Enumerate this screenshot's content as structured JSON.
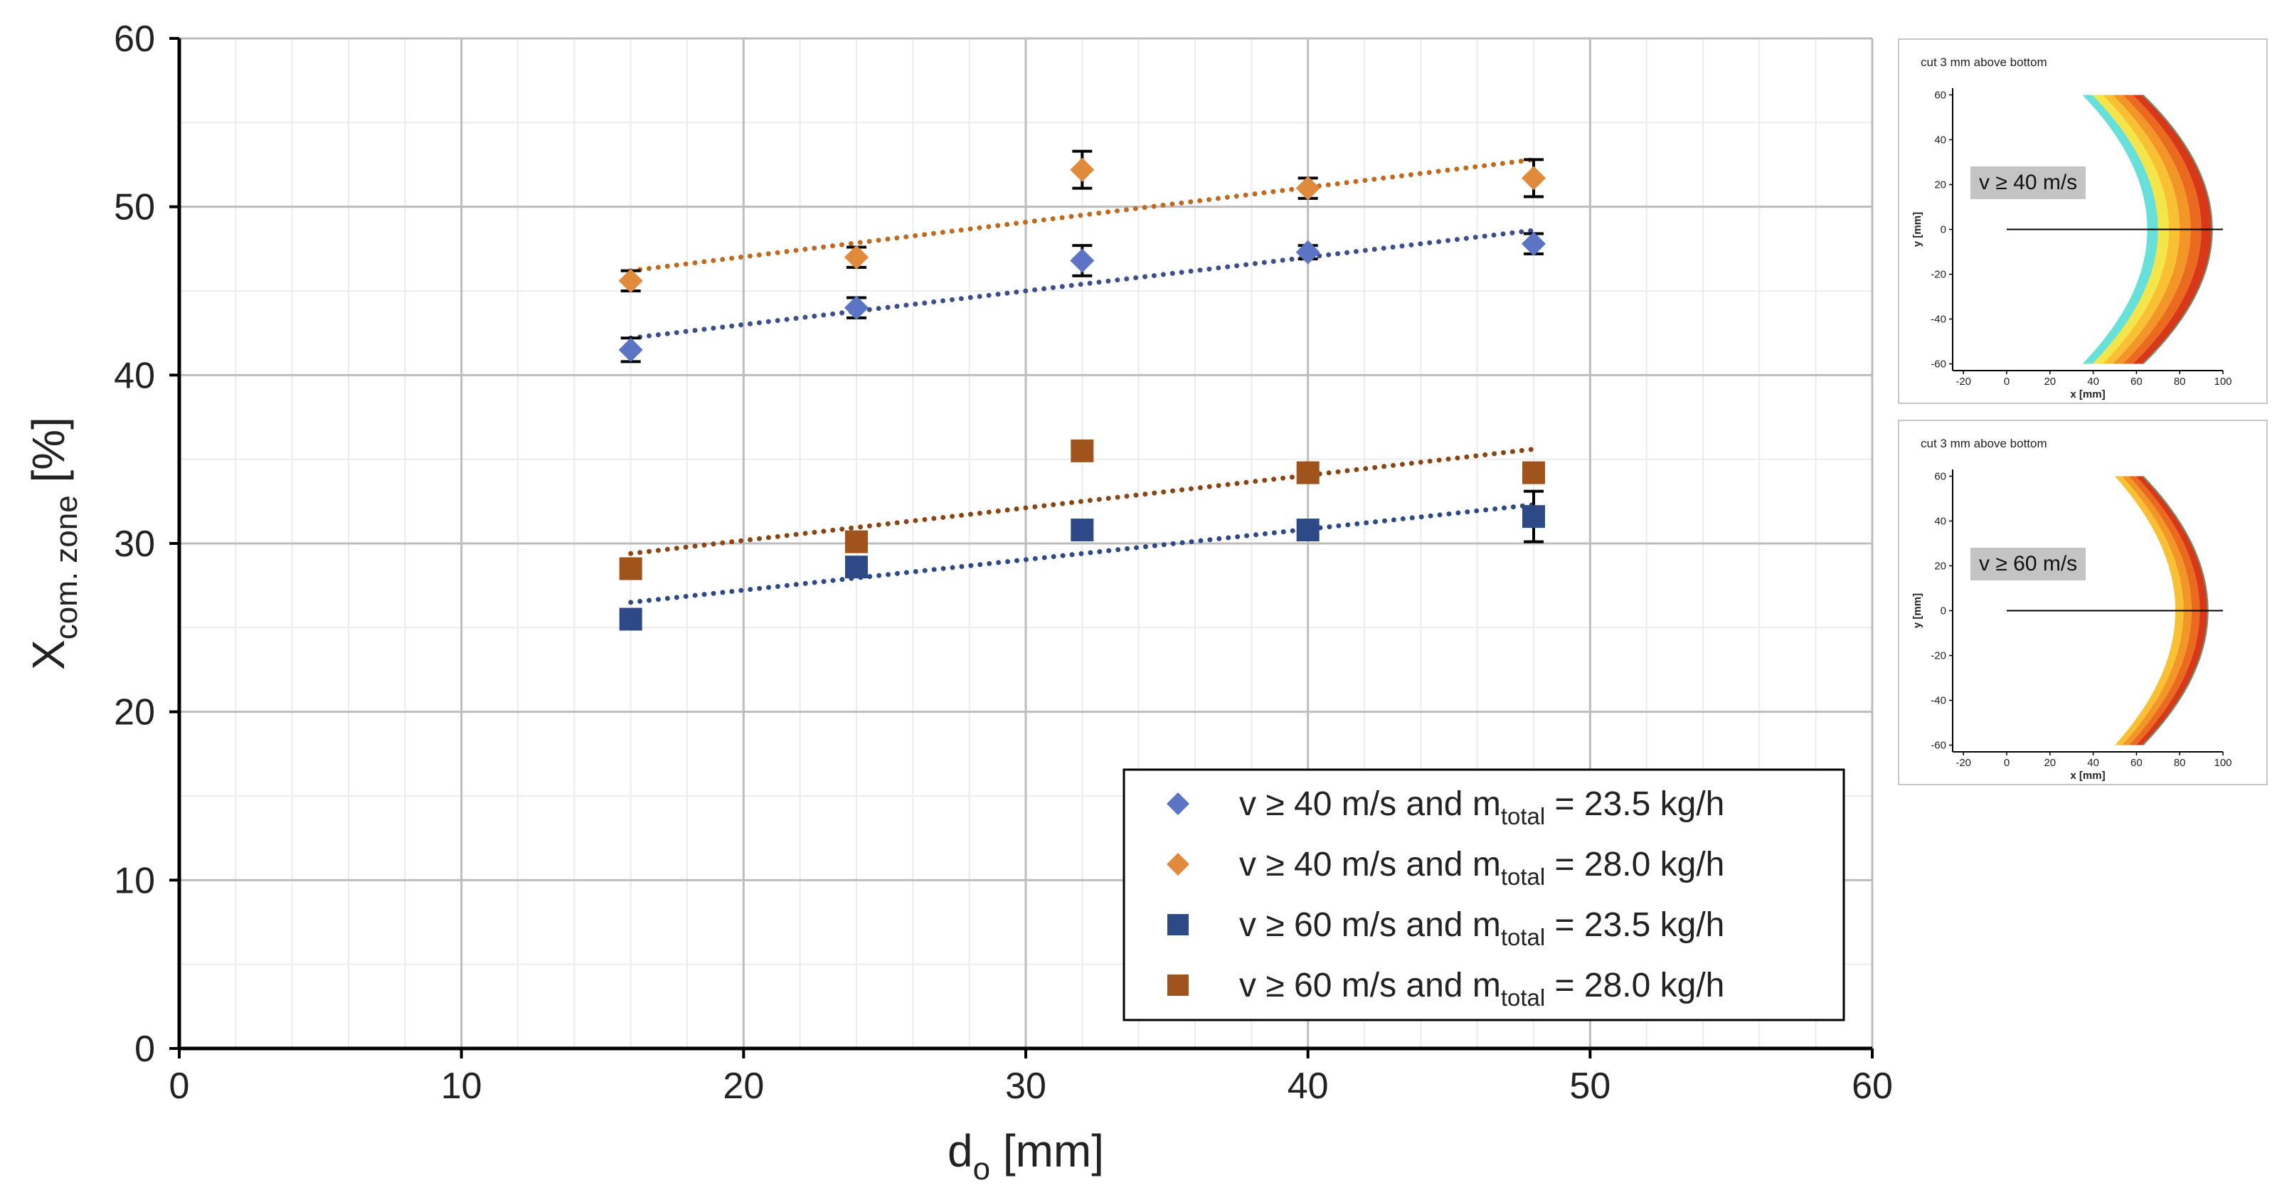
{
  "chart_data": {
    "type": "scatter",
    "xlabel_main": "d",
    "xlabel_sub": "o",
    "xlabel_unit": " [mm]",
    "ylabel_main": "X",
    "ylabel_sub": "com. zone",
    "ylabel_unit": " [%]",
    "xlim": [
      0,
      60
    ],
    "ylim": [
      0,
      60
    ],
    "x_ticks": [
      0,
      10,
      20,
      30,
      40,
      50,
      60
    ],
    "y_ticks": [
      0,
      10,
      20,
      30,
      40,
      50,
      60
    ],
    "grid": "major and minor",
    "legend_position": "bottom-right",
    "series": [
      {
        "id": "s1",
        "legend_prefix": "v ≥ 40 m/s and m",
        "legend_sub": "total",
        "legend_suffix": " = 23.5 kg/h",
        "marker": "diamond",
        "color": "#5b74c4",
        "trend_color": "#3c4f8c",
        "x": [
          16,
          24,
          32,
          40,
          48
        ],
        "y": [
          41.5,
          44.0,
          46.8,
          47.3,
          47.8
        ],
        "err": [
          0.7,
          0.6,
          0.9,
          0.4,
          0.6
        ],
        "trend": [
          [
            16,
            42.2
          ],
          [
            48,
            48.6
          ]
        ]
      },
      {
        "id": "s2",
        "legend_prefix": "v ≥ 40 m/s and m",
        "legend_sub": "total",
        "legend_suffix": " = 28.0 kg/h",
        "marker": "diamond",
        "color": "#e08a3c",
        "trend_color": "#c06a20",
        "x": [
          16,
          24,
          32,
          40,
          48
        ],
        "y": [
          45.6,
          47.0,
          52.2,
          51.1,
          51.7
        ],
        "err": [
          0.6,
          0.6,
          1.1,
          0.6,
          1.1
        ],
        "trend": [
          [
            16,
            46.2
          ],
          [
            48,
            52.8
          ]
        ]
      },
      {
        "id": "s3",
        "legend_prefix": "v ≥ 60 m/s and m",
        "legend_sub": "total",
        "legend_suffix": " = 23.5 kg/h",
        "marker": "square",
        "color": "#2e4a86",
        "trend_color": "#2e4a86",
        "x": [
          16,
          24,
          32,
          40,
          48
        ],
        "y": [
          25.5,
          28.6,
          30.8,
          30.8,
          31.6
        ],
        "err": [
          0.0,
          0.5,
          0.0,
          0.3,
          1.5
        ],
        "trend": [
          [
            16,
            26.5
          ],
          [
            48,
            32.3
          ]
        ]
      },
      {
        "id": "s4",
        "legend_prefix": "v ≥ 60 m/s and m",
        "legend_sub": "total",
        "legend_suffix": " = 28.0 kg/h",
        "marker": "square",
        "color": "#a0541c",
        "trend_color": "#8b4513",
        "x": [
          16,
          24,
          32,
          40,
          48
        ],
        "y": [
          28.5,
          30.1,
          35.5,
          34.2,
          34.2
        ],
        "err": [
          0.0,
          0.3,
          0.0,
          0.3,
          0.3
        ],
        "trend": [
          [
            16,
            29.4
          ],
          [
            48,
            35.6
          ]
        ]
      }
    ]
  },
  "insets": [
    {
      "title": "cut 3 mm above bottom",
      "badge": "v ≥ 40 m/s",
      "xlabel": "x [mm]",
      "ylabel": "y [mm]",
      "xlim": [
        -25,
        100
      ],
      "ylim": [
        -63,
        63
      ],
      "x_ticks": [
        "-20",
        "0",
        "20",
        "40",
        "60",
        "80",
        "100"
      ],
      "y_ticks": [
        "60",
        "40",
        "20",
        "0",
        "-20",
        "-40",
        "-60"
      ],
      "inner_x_at_ymax": 35,
      "inner_x_at_center": 65,
      "outer_x_at_ymax": 63,
      "outer_x_at_center": 95,
      "color_bands": [
        "#66e0d8",
        "#f4e64a",
        "#f8c032",
        "#f29628",
        "#ea6a20",
        "#d8381a"
      ]
    },
    {
      "title": "cut 3 mm above bottom",
      "badge": "v ≥ 60 m/s",
      "xlabel": "x [mm]",
      "ylabel": "y [mm]",
      "xlim": [
        -25,
        100
      ],
      "ylim": [
        -63,
        63
      ],
      "x_ticks": [
        "-20",
        "0",
        "20",
        "40",
        "60",
        "80",
        "100"
      ],
      "y_ticks": [
        "60",
        "40",
        "20",
        "0",
        "-20",
        "-40",
        "-60"
      ],
      "inner_x_at_ymax": 50,
      "inner_x_at_center": 78,
      "outer_x_at_ymax": 63,
      "outer_x_at_center": 93,
      "color_bands": [
        "#f8c032",
        "#f29628",
        "#ea6a20",
        "#d8381a"
      ]
    }
  ]
}
